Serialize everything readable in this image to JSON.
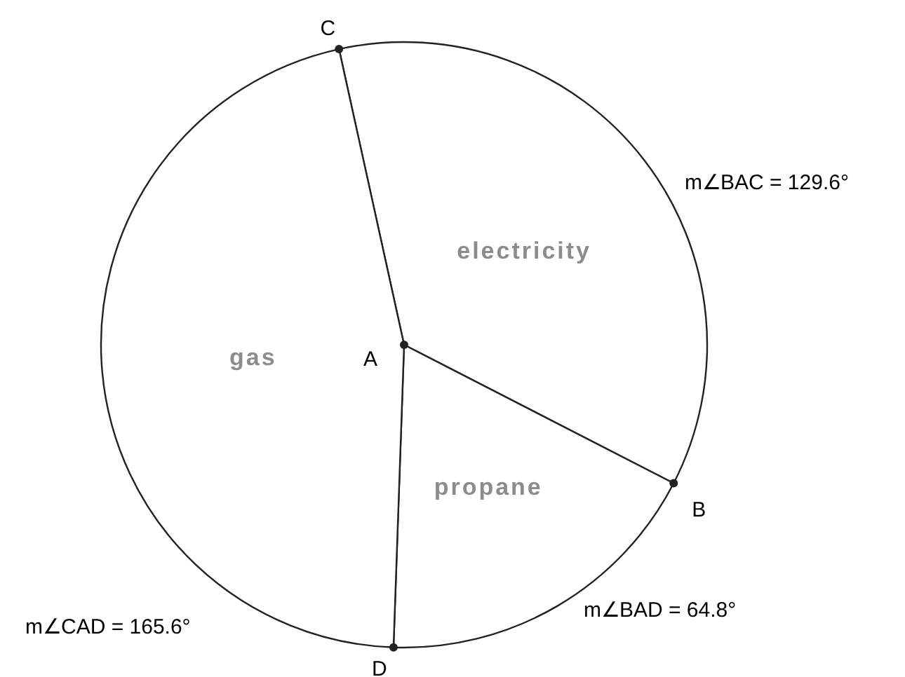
{
  "chart_data": {
    "type": "pie",
    "categories": [
      "electricity",
      "propane",
      "gas"
    ],
    "values": [
      36,
      18,
      46
    ],
    "colors": [
      "#ffffff",
      "#ffffff",
      "#ffffff"
    ],
    "annotations": [
      "m∠BAC = 129.6°",
      "m∠BAD = 64.8°",
      "m∠CAD = 165.6°",
      "A",
      "B",
      "C",
      "D"
    ]
  }
}
